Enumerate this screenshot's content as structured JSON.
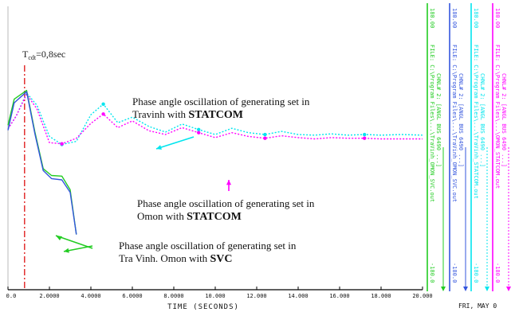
{
  "chart_data": {
    "type": "line",
    "xlabel": "TIME (SECONDS)",
    "ylabel": "",
    "xlim": [
      0,
      20
    ],
    "x_ticks": [
      "0.0",
      "2.0000",
      "4.0000",
      "6.0000",
      "8.0000",
      "10.000",
      "12.000",
      "14.000",
      "16.000",
      "18.000",
      "20.000"
    ],
    "footer": "FRI, MAY 0",
    "fault_marker": {
      "label": "T",
      "label_sub": "cdt",
      "label_value": "=0,8sec",
      "x": 0.8
    },
    "annotations": [
      {
        "text": "Phase angle oscillation of generating set in",
        "text2": "Travinh with ",
        "emph": "STATCOM",
        "color": "#00e5ee"
      },
      {
        "text": "Phase angle oscillation of generating set in",
        "text2": "Omon with ",
        "emph": "STATCOM",
        "color": "#ff00ff"
      },
      {
        "text": "Phase angle oscillation of generating set in",
        "text2": "Tra Vinh. Omon with ",
        "emph": "SVC",
        "color": "#22cc22"
      }
    ],
    "series": [
      {
        "color": "#00e5ee",
        "style": "dotted",
        "x": [
          0,
          0.4,
          0.9,
          1.4,
          2.0,
          2.6,
          3.3,
          4.0,
          4.6,
          5.3,
          6.0,
          6.8,
          7.6,
          8.4,
          9.2,
          10.0,
          10.8,
          11.6,
          12.4,
          13.2,
          14.0,
          14.8,
          15.6,
          16.4,
          17.2,
          18.0,
          19.0,
          20.0
        ],
        "y": [
          50,
          71,
          108,
          88,
          38,
          25,
          30,
          73,
          90,
          60,
          69,
          54,
          45,
          58,
          49,
          41,
          51,
          44,
          41,
          46,
          41,
          40,
          42,
          40,
          41,
          40,
          41,
          40
        ]
      },
      {
        "color": "#ff00ff",
        "style": "dotted",
        "x": [
          0,
          0.4,
          0.9,
          1.4,
          2.0,
          2.6,
          3.3,
          4.0,
          4.6,
          5.3,
          6.0,
          6.8,
          7.6,
          8.4,
          9.2,
          10.0,
          10.8,
          11.6,
          12.4,
          13.2,
          14.0,
          14.8,
          15.6,
          16.4,
          17.2,
          18.0,
          19.0,
          20.0
        ],
        "y": [
          50,
          71,
          106,
          82,
          28,
          26,
          35,
          59,
          74,
          52,
          63,
          47,
          41,
          52,
          44,
          36,
          44,
          38,
          35,
          39,
          36,
          34,
          36,
          35,
          35,
          34,
          34,
          34
        ]
      },
      {
        "color": "#22cc22",
        "style": "solid",
        "x": [
          0,
          0.3,
          0.9,
          1.3,
          1.7,
          2.1,
          2.6,
          3.0,
          3.3
        ],
        "y": [
          56,
          98,
          112,
          45,
          -14,
          -25,
          -26,
          -48,
          -120
        ]
      },
      {
        "color": "#3355dd",
        "style": "solid",
        "x": [
          0,
          0.3,
          0.9,
          1.3,
          1.7,
          2.1,
          2.6,
          3.0,
          3.3
        ],
        "y": [
          48,
          92,
          110,
          42,
          -17,
          -30,
          -32,
          -52,
          -120
        ]
      }
    ],
    "legend_panels": [
      {
        "color": "#22cc22",
        "top": "180.00",
        "bottom": "-180.0",
        "lines": [
          "FILE: C:\\Program Files\\...\\TraVinh_OMON_SVC.out",
          "CHNL# 2: [ANGL BUS 6490 ...]"
        ]
      },
      {
        "color": "#3355dd",
        "top": "180.00",
        "bottom": "-180.0",
        "lines": [
          "FILE: C:\\Program Files\\...\\TraVinh_OMON_SVC.out",
          "CHNL# 2: [ANGL BUS 6490 ...]"
        ]
      },
      {
        "color": "#00e5ee",
        "top": "180.00",
        "bottom": "-180.0",
        "lines": [
          "FILE: C:\\Program Files\\...\\TraVinh_STATCOM.out",
          "CHNL# 2: [ANGL BUS 6490 ...]"
        ]
      },
      {
        "color": "#ff00ff",
        "top": "180.00",
        "bottom": "-180.0",
        "lines": [
          "FILE: C:\\Program Files\\...\\OMON_STATCOM.out",
          "CHNL# 2: [ANGL BUS 6490 ...]"
        ]
      }
    ]
  }
}
